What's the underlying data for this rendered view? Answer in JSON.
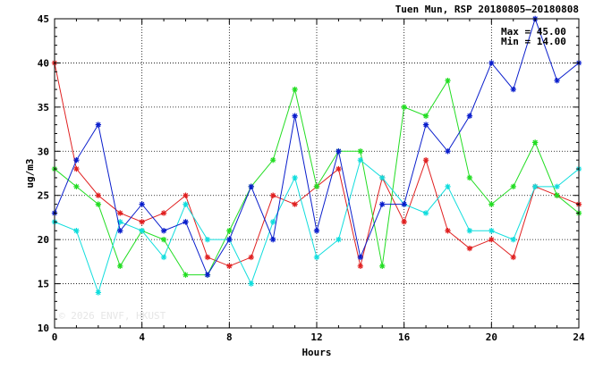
{
  "chart_data": {
    "type": "line",
    "title": "Tuen Mun, RSP 20180805–20180808",
    "xlabel": "Hours",
    "ylabel": "ug/m3",
    "xlim": [
      0,
      24
    ],
    "ylim": [
      10,
      45
    ],
    "xticks": [
      0,
      4,
      8,
      12,
      16,
      20,
      24
    ],
    "yticks": [
      10,
      15,
      20,
      25,
      30,
      35,
      40,
      45
    ],
    "grid": true,
    "marker": "asterisk",
    "annotations": {
      "max": "Max = 45.00",
      "min": "Min = 14.00"
    },
    "watermark": "© 2026  ENVF, HKUST",
    "x": [
      0,
      1,
      2,
      3,
      4,
      5,
      6,
      7,
      8,
      9,
      10,
      11,
      12,
      13,
      14,
      15,
      16,
      17,
      18,
      19,
      20,
      21,
      22,
      23,
      24
    ],
    "series": [
      {
        "color": "#e02020",
        "values": [
          40,
          28,
          25,
          23,
          22,
          23,
          25,
          18,
          17,
          18,
          25,
          24,
          26,
          28,
          17,
          27,
          22,
          29,
          21,
          19,
          20,
          18,
          26,
          25,
          24
        ]
      },
      {
        "color": "#22dd22",
        "values": [
          28,
          26,
          24,
          17,
          21,
          20,
          16,
          16,
          21,
          26,
          29,
          37,
          26,
          30,
          30,
          17,
          35,
          34,
          38,
          27,
          24,
          26,
          31,
          25,
          23
        ]
      },
      {
        "color": "#11dddd",
        "values": [
          22,
          21,
          14,
          22,
          21,
          18,
          24,
          20,
          20,
          15,
          22,
          27,
          18,
          20,
          29,
          27,
          24,
          23,
          26,
          21,
          21,
          20,
          26,
          26,
          28
        ]
      },
      {
        "color": "#0a1ecc",
        "values": [
          23,
          29,
          33,
          21,
          24,
          21,
          22,
          16,
          20,
          26,
          20,
          34,
          21,
          30,
          18,
          24,
          24,
          33,
          30,
          34,
          40,
          37,
          45,
          38,
          40
        ]
      }
    ]
  }
}
